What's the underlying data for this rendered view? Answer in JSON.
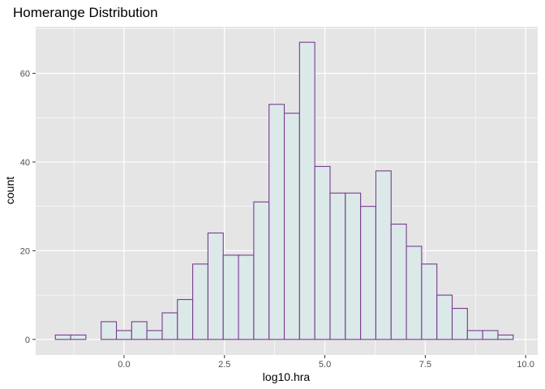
{
  "chart_data": {
    "type": "bar",
    "title": "Homerange Distribution",
    "xlabel": "log10.hra",
    "ylabel": "count",
    "xlim": [
      -2.2,
      10.3
    ],
    "ylim": [
      -3.5,
      70.5
    ],
    "x_ticks": [
      {
        "value": 0,
        "label": "0.0"
      },
      {
        "value": 2.5,
        "label": "2.5"
      },
      {
        "value": 5,
        "label": "5.0"
      },
      {
        "value": 7.5,
        "label": "7.5"
      },
      {
        "value": 10,
        "label": "10.0"
      }
    ],
    "y_ticks": [
      {
        "value": 0,
        "label": "0"
      },
      {
        "value": 20,
        "label": "20"
      },
      {
        "value": 40,
        "label": "40"
      },
      {
        "value": 60,
        "label": "60"
      }
    ],
    "bin_width": 0.38,
    "first_bin_start": -1.71,
    "counts": [
      1,
      1,
      0,
      4,
      2,
      4,
      2,
      6,
      9,
      17,
      24,
      19,
      19,
      31,
      53,
      51,
      67,
      39,
      33,
      33,
      30,
      38,
      26,
      21,
      17,
      10,
      7,
      2,
      2,
      1
    ],
    "grid": true,
    "legend": "none",
    "colors": {
      "panel_background": "#e5e5e5",
      "grid_line": "#ffffff",
      "bar_fill": "#dbe9e9",
      "bar_stroke": "#7a3b8e",
      "text": "#000000",
      "tick_text": "#4d4d4d",
      "tick_mark": "#333333"
    }
  }
}
